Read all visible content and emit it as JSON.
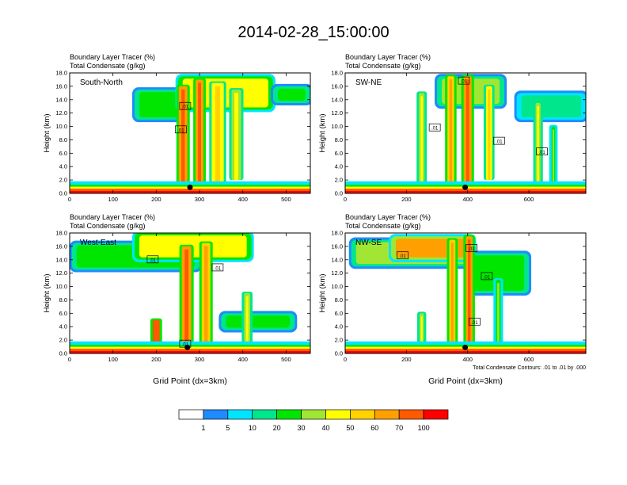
{
  "figure": {
    "title": "2014-02-28_15:00:00",
    "contour_note": "Total Condensate Contours: .01 to .01 by .000",
    "xlabel": "Grid Point (dx=3km)",
    "ylabel": "Height (km)",
    "subtitle_line1": "Boundary Layer Tracer    (%)",
    "subtitle_line2": "Total Condensate    (g/kg)",
    "contour_label": ".01"
  },
  "colorbar": {
    "colors": [
      "#ffffff",
      "#1e8cff",
      "#00e5ff",
      "#00e68c",
      "#00e600",
      "#a0e632",
      "#ffff00",
      "#ffd200",
      "#ffa000",
      "#ff5a00",
      "#ff0000"
    ],
    "labels": [
      "1",
      "5",
      "10",
      "20",
      "30",
      "40",
      "50",
      "60",
      "70",
      "100"
    ]
  },
  "chart_data": [
    {
      "type": "heatmap",
      "name": "South-North",
      "title": "Boundary Layer Tracer (%) / Total Condensate (g/kg)",
      "xlim": [
        0,
        556
      ],
      "ylim": [
        0,
        18
      ],
      "xticks": [
        0,
        100,
        200,
        300,
        400,
        500
      ],
      "yticks": [
        "0.0",
        "2.0",
        "4.0",
        "6.0",
        "8.0",
        "10.0",
        "12.0",
        "14.0",
        "16.0",
        "18.0"
      ],
      "xlabel": "",
      "ylabel": "Height (km)",
      "marker": {
        "x": 278,
        "y": 0.9
      },
      "plumes": [
        {
          "x": 262,
          "w": 20,
          "top": 16.0,
          "bot": 0.5,
          "v": 60
        },
        {
          "x": 300,
          "w": 18,
          "top": 17.0,
          "bot": 0.5,
          "v": 60
        },
        {
          "x": 342,
          "w": 28,
          "top": 16.5,
          "bot": 1.0,
          "v": 40
        },
        {
          "x": 385,
          "w": 22,
          "top": 15.5,
          "bot": 2.0,
          "v": 30
        }
      ],
      "anvils": [
        {
          "x0": 150,
          "x1": 260,
          "ytop": 15.5,
          "ybot": 11.0,
          "v": 20
        },
        {
          "x0": 250,
          "x1": 470,
          "ytop": 17.5,
          "ybot": 12.5,
          "v": 45
        },
        {
          "x0": 470,
          "x1": 556,
          "ytop": 16.0,
          "ybot": 13.5,
          "v": 20
        }
      ],
      "labels": [
        {
          "x": 265,
          "y": 13.0
        },
        {
          "x": 255,
          "y": 9.5
        }
      ]
    },
    {
      "type": "heatmap",
      "name": "SW-NE",
      "title": "Boundary Layer Tracer (%) / Total Condensate (g/kg)",
      "xlim": [
        0,
        786
      ],
      "ylim": [
        0,
        18
      ],
      "xticks": [
        0,
        200,
        400,
        600
      ],
      "yticks": [
        "0.0",
        "2.0",
        "4.0",
        "6.0",
        "8.0",
        "10.0",
        "12.0",
        "14.0",
        "16.0",
        "18.0"
      ],
      "xlabel": "",
      "ylabel": "Height (km)",
      "marker": {
        "x": 392,
        "y": 0.9
      },
      "plumes": [
        {
          "x": 250,
          "w": 18,
          "top": 15.0,
          "bot": 1.0,
          "v": 30
        },
        {
          "x": 345,
          "w": 22,
          "top": 17.5,
          "bot": 1.0,
          "v": 50
        },
        {
          "x": 400,
          "w": 26,
          "top": 17.5,
          "bot": 0.5,
          "v": 60
        },
        {
          "x": 470,
          "w": 20,
          "top": 16.0,
          "bot": 2.0,
          "v": 40
        },
        {
          "x": 630,
          "w": 16,
          "top": 13.5,
          "bot": 1.0,
          "v": 30
        },
        {
          "x": 680,
          "w": 12,
          "top": 10.0,
          "bot": 1.5,
          "v": 20
        }
      ],
      "anvils": [
        {
          "x0": 300,
          "x1": 520,
          "ytop": 17.5,
          "ybot": 13.0,
          "v": 30
        },
        {
          "x0": 560,
          "x1": 786,
          "ytop": 15.0,
          "ybot": 11.0,
          "v": 10
        }
      ],
      "labels": [
        {
          "x": 385,
          "y": 16.8
        },
        {
          "x": 290,
          "y": 9.8
        },
        {
          "x": 500,
          "y": 7.8
        },
        {
          "x": 640,
          "y": 6.2
        }
      ]
    },
    {
      "type": "heatmap",
      "name": "West-East",
      "title": "Boundary Layer Tracer (%) / Total Condensate (g/kg)",
      "xlim": [
        0,
        556
      ],
      "ylim": [
        0,
        18
      ],
      "xticks": [
        0,
        100,
        200,
        300,
        400,
        500
      ],
      "yticks": [
        "0.0",
        "2.0",
        "4.0",
        "6.0",
        "8.0",
        "10.0",
        "12.0",
        "14.0",
        "16.0",
        "18.0"
      ],
      "xlabel": "Grid Point (dx=3km)",
      "ylabel": "Height (km)",
      "marker": {
        "x": 272,
        "y": 0.9
      },
      "plumes": [
        {
          "x": 270,
          "w": 22,
          "top": 16.0,
          "bot": 0.5,
          "v": 60
        },
        {
          "x": 315,
          "w": 20,
          "top": 16.5,
          "bot": 0.5,
          "v": 50
        },
        {
          "x": 200,
          "w": 16,
          "top": 5.0,
          "bot": 0.5,
          "v": 70
        },
        {
          "x": 410,
          "w": 14,
          "top": 9.0,
          "bot": 1.0,
          "v": 30
        }
      ],
      "anvils": [
        {
          "x0": 5,
          "x1": 300,
          "ytop": 16.5,
          "ybot": 12.5,
          "v": 20
        },
        {
          "x0": 150,
          "x1": 420,
          "ytop": 18.0,
          "ybot": 14.0,
          "v": 40
        },
        {
          "x0": 350,
          "x1": 520,
          "ytop": 6.0,
          "ybot": 3.5,
          "v": 20
        }
      ],
      "labels": [
        {
          "x": 190,
          "y": 14.0
        },
        {
          "x": 340,
          "y": 12.8
        },
        {
          "x": 265,
          "y": 1.4
        }
      ]
    },
    {
      "type": "heatmap",
      "name": "NW-SE",
      "title": "Boundary Layer Tracer (%) / Total Condensate (g/kg)",
      "xlim": [
        0,
        786
      ],
      "ylim": [
        0,
        18
      ],
      "xticks": [
        0,
        200,
        400,
        600
      ],
      "yticks": [
        "0.0",
        "2.0",
        "4.0",
        "6.0",
        "8.0",
        "10.0",
        "12.0",
        "14.0",
        "16.0",
        "18.0"
      ],
      "xlabel": "Grid Point (dx=3km)",
      "ylabel": "Height (km)",
      "marker": {
        "x": 392,
        "y": 0.9
      },
      "plumes": [
        {
          "x": 350,
          "w": 20,
          "top": 17.0,
          "bot": 0.5,
          "v": 50
        },
        {
          "x": 405,
          "w": 22,
          "top": 17.5,
          "bot": 0.5,
          "v": 60
        },
        {
          "x": 250,
          "w": 14,
          "top": 6.0,
          "bot": 1.0,
          "v": 30
        },
        {
          "x": 500,
          "w": 16,
          "top": 11.0,
          "bot": 1.5,
          "v": 20
        }
      ],
      "anvils": [
        {
          "x0": 20,
          "x1": 420,
          "ytop": 17.0,
          "ybot": 13.0,
          "v": 30
        },
        {
          "x0": 150,
          "x1": 420,
          "ytop": 17.5,
          "ybot": 14.0,
          "v": 60
        },
        {
          "x0": 400,
          "x1": 600,
          "ytop": 15.0,
          "ybot": 9.0,
          "v": 20
        }
      ],
      "labels": [
        {
          "x": 185,
          "y": 14.6
        },
        {
          "x": 410,
          "y": 15.7
        },
        {
          "x": 460,
          "y": 11.5
        },
        {
          "x": 420,
          "y": 4.7
        }
      ]
    }
  ]
}
